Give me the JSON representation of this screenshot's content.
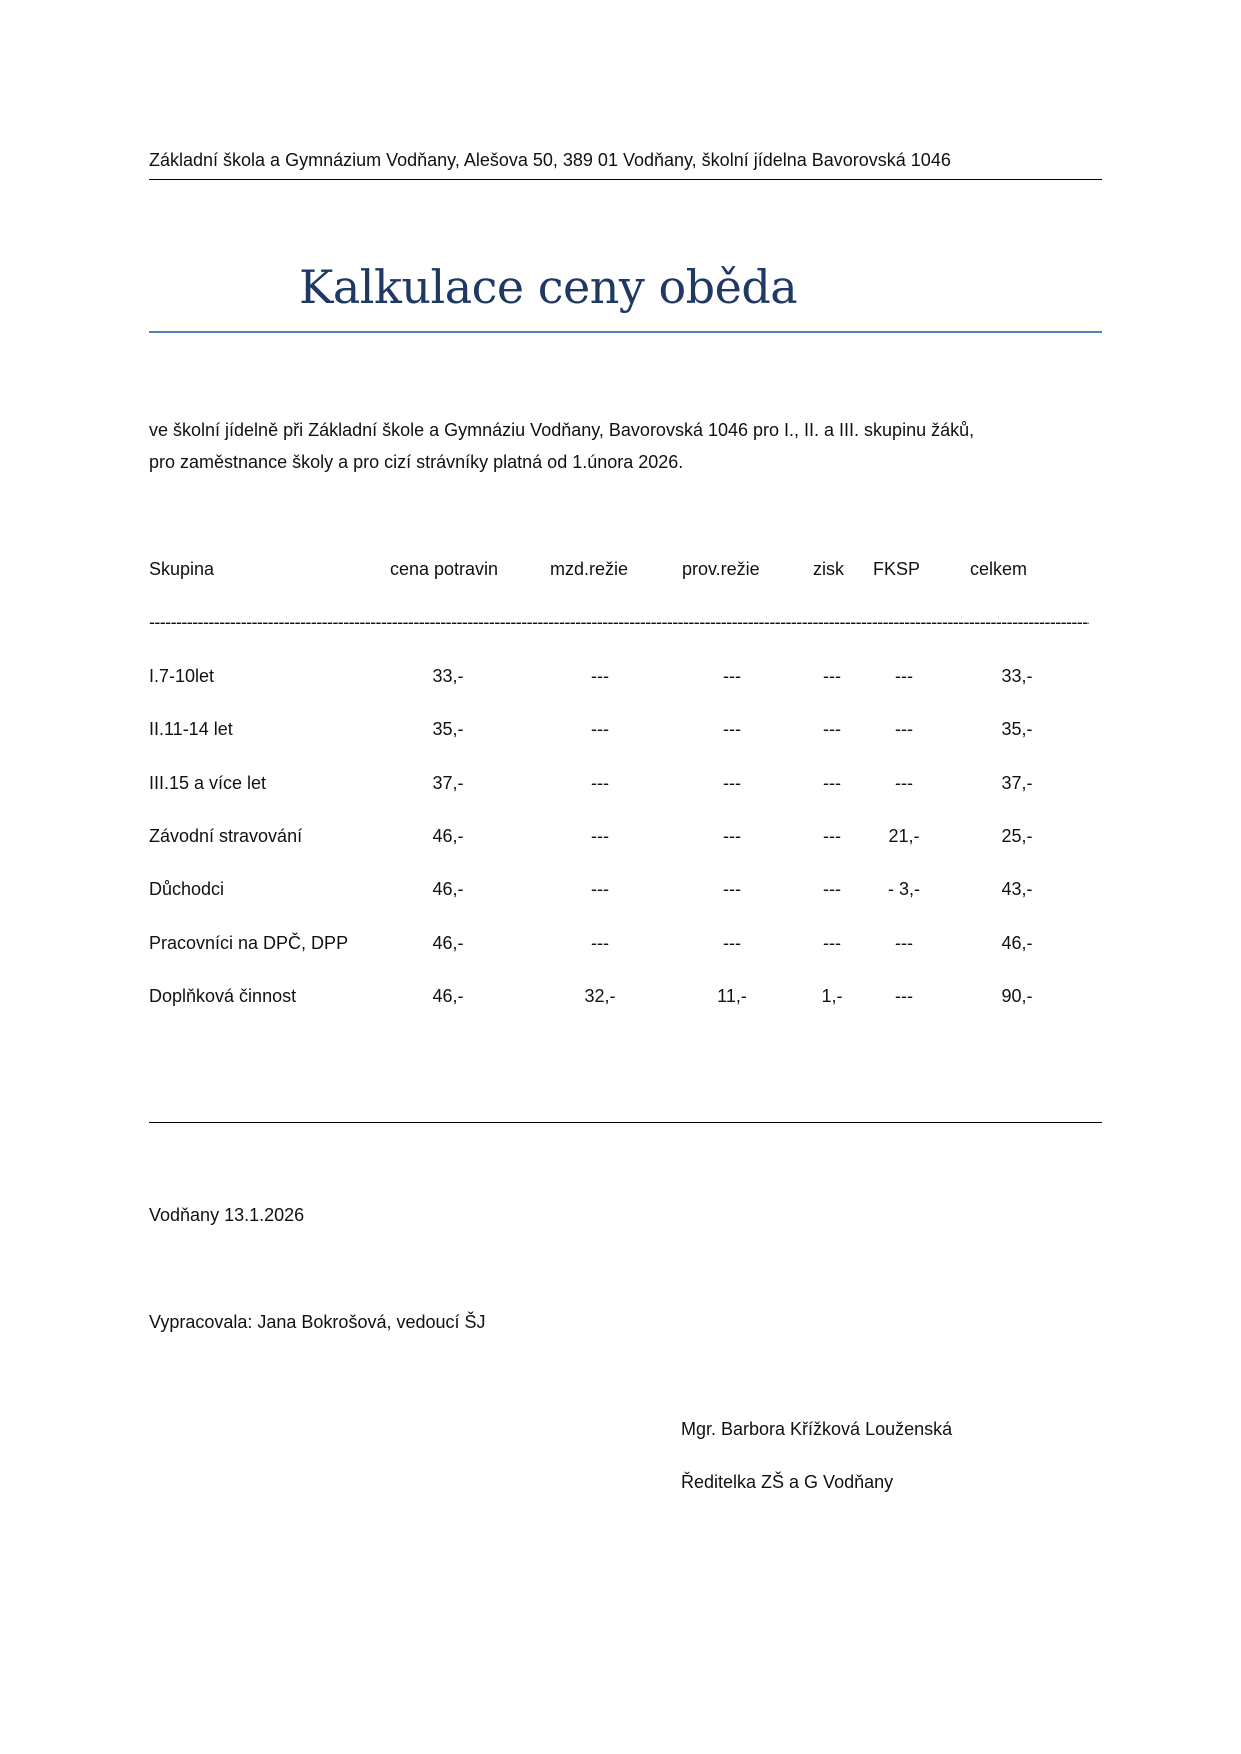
{
  "header": {
    "text": "Základní škola a Gymnázium Vodňany, Alešova 50, 389 01 Vodňany, školní jídelna Bavorovská 1046"
  },
  "title": "Kalkulace ceny oběda",
  "intro": {
    "line1": "ve školní jídelně při Základní škole a Gymnáziu Vodňany, Bavorovská 1046 pro I., II. a III. skupinu žáků,",
    "line2": "pro zaměstnance školy a pro cizí strávníky platná od 1.února 2026."
  },
  "table": {
    "headers": [
      "Skupina",
      "cena potravin",
      "mzd.režie",
      "prov.režie",
      "zisk",
      "FKSP",
      "celkem"
    ],
    "separator": "-----------------------------------------------------------------------------------------------------------------------------------------------------------------------------------",
    "rows": [
      [
        "I.7-10let",
        "33,-",
        "---",
        "---",
        "---",
        "---",
        "33,-"
      ],
      [
        "II.11-14 let",
        "35,-",
        "---",
        "---",
        "---",
        "---",
        "35,-"
      ],
      [
        "III.15 a více let",
        "37,-",
        "---",
        "---",
        "---",
        "---",
        "37,-"
      ],
      [
        "Závodní stravování",
        "46,-",
        "---",
        "---",
        "---",
        "21,-",
        "25,-"
      ],
      [
        "Důchodci",
        "46,-",
        "---",
        "---",
        "---",
        "- 3,-",
        "43,-"
      ],
      [
        "Pracovníci na DPČ, DPP",
        "46,-",
        "---",
        "---",
        "---",
        "---",
        "46,-"
      ],
      [
        "Doplňková činnost",
        "46,-",
        "32,-",
        "11,-",
        "1,-",
        "---",
        "90,-"
      ]
    ]
  },
  "footer": {
    "place_date": "Vodňany 13.1.2026",
    "prepared_by": "Vypracovala:  Jana Bokrošová, vedoucí ŠJ",
    "signatory_name": "Mgr. Barbora Křížková Louženská",
    "signatory_role": "Ředitelka ZŠ a G Vodňany"
  },
  "colors": {
    "title": "#1f3864",
    "title_rule": "#4f81bd"
  }
}
